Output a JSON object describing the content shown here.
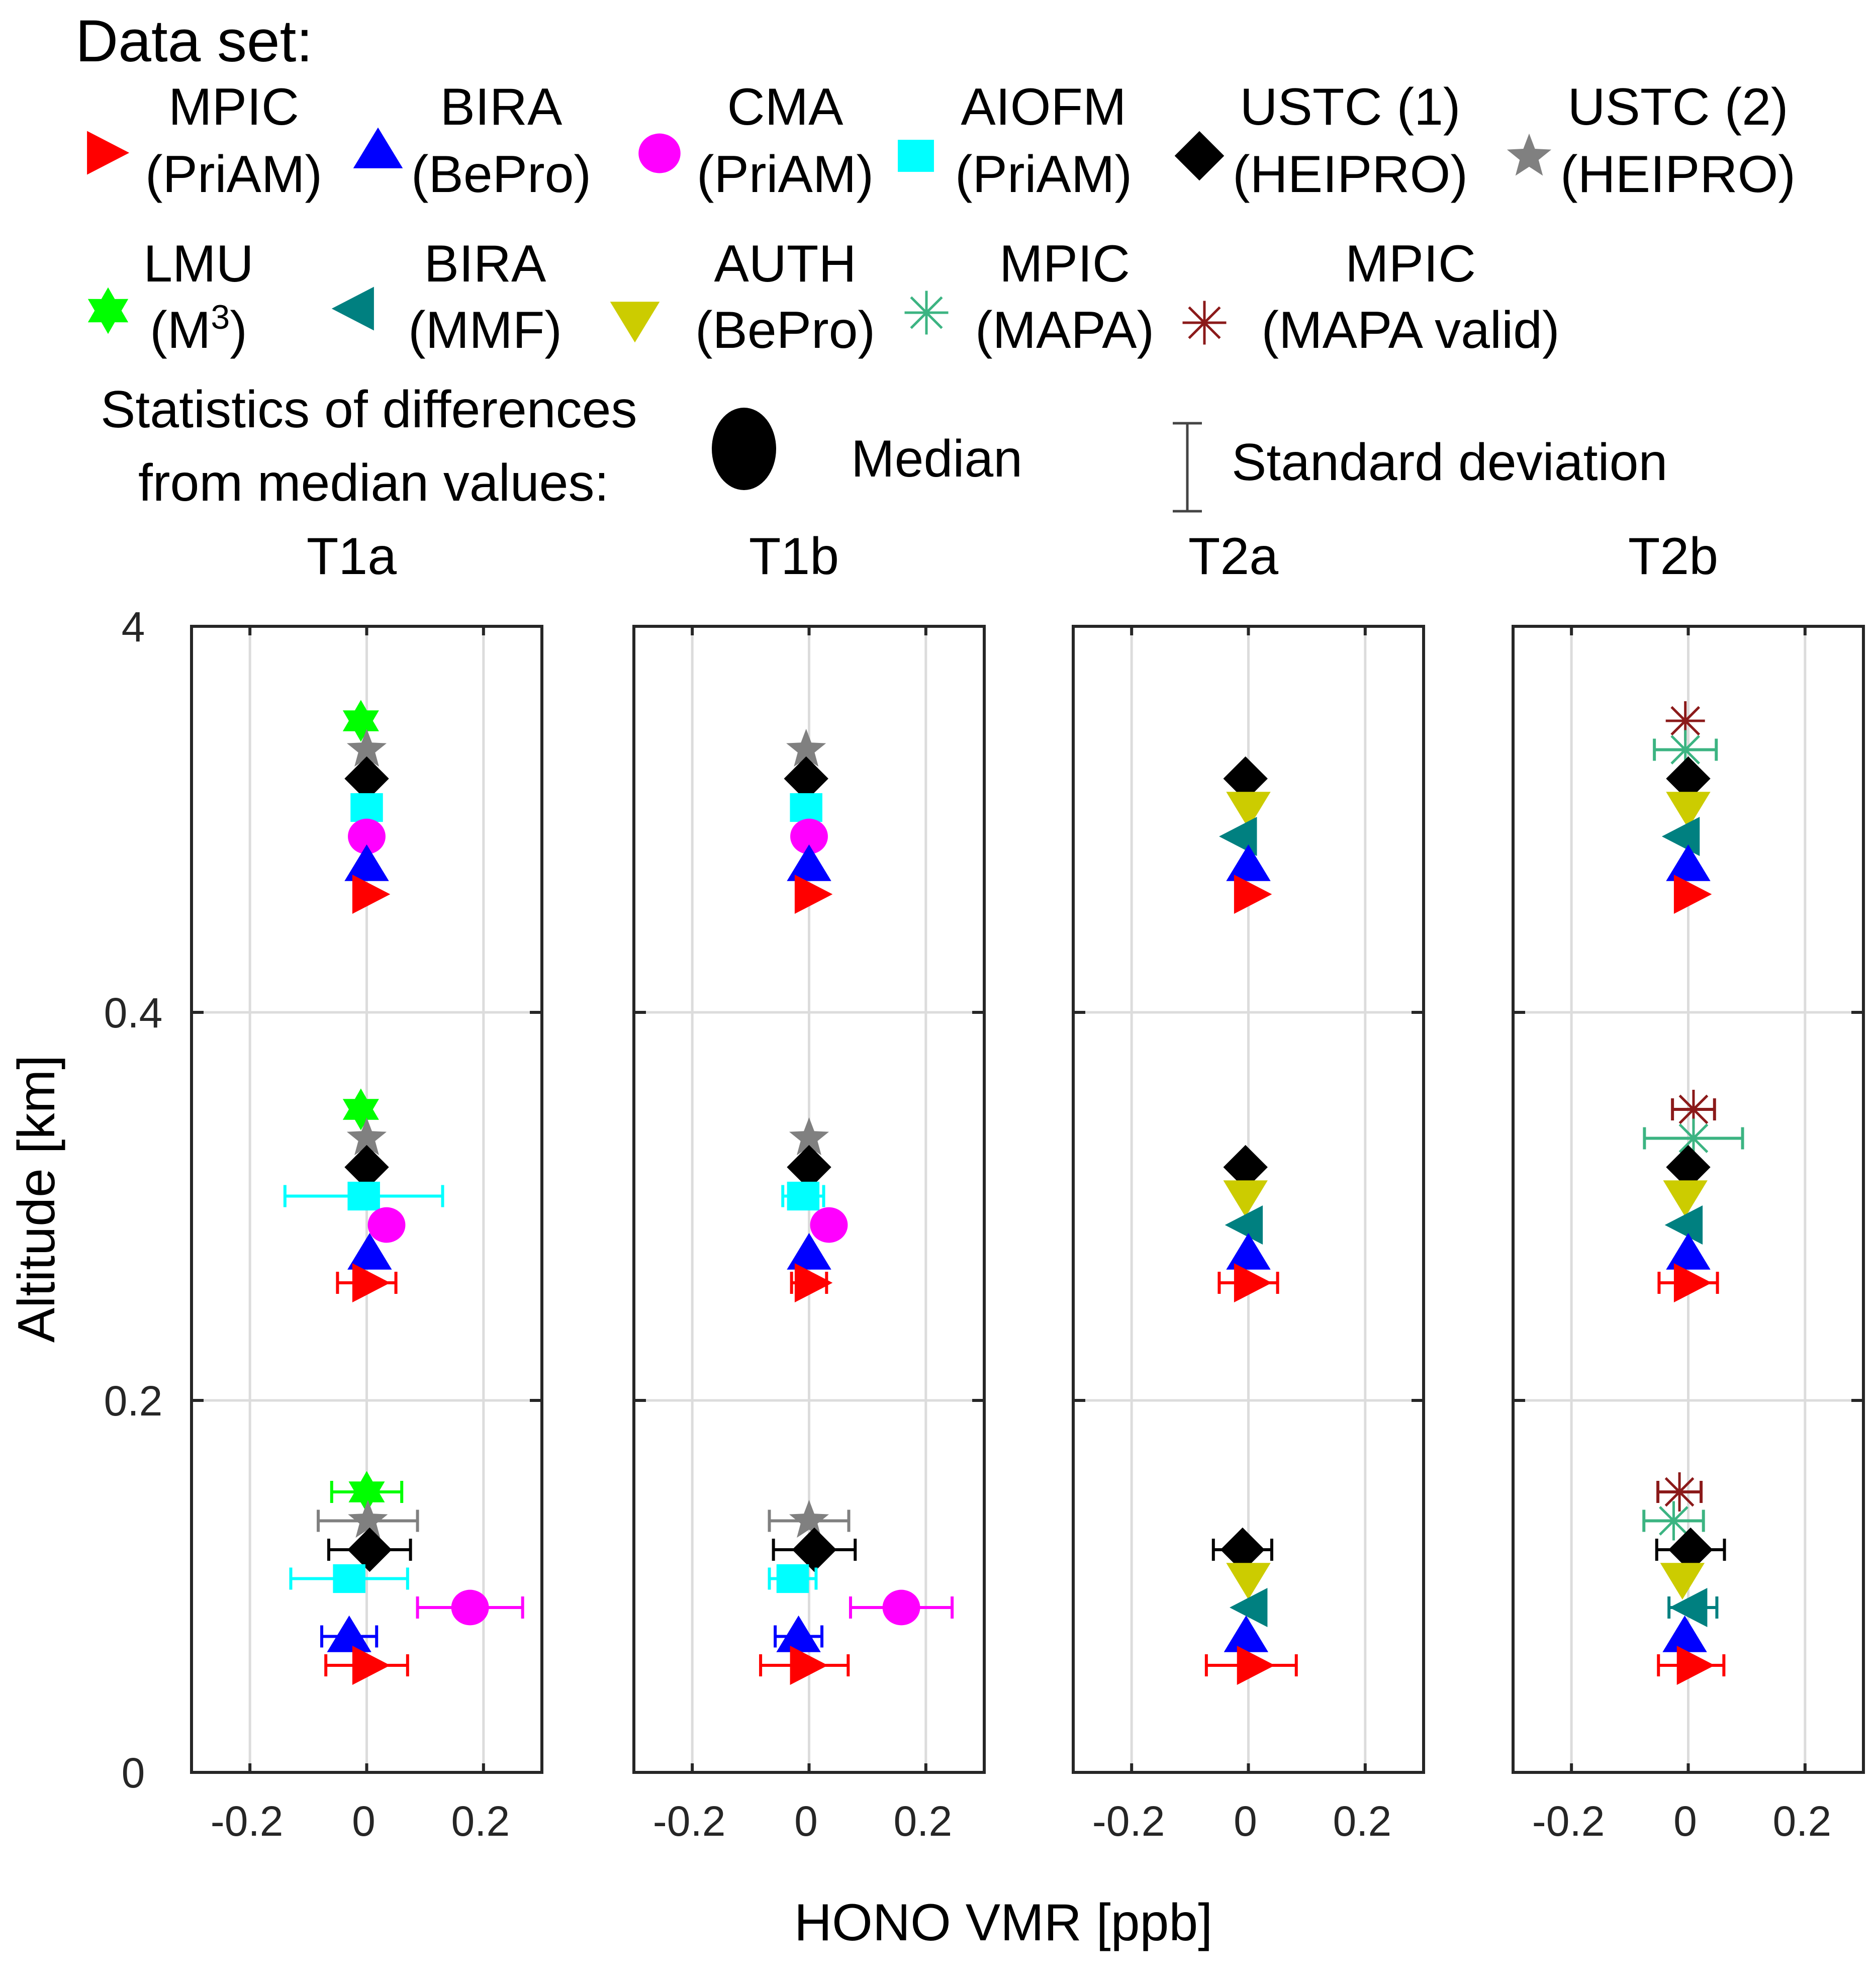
{
  "legend": {
    "title": "Data set:",
    "stats_title_line1": "Statistics of differences",
    "stats_title_line2": "from median values:",
    "median_label": "Median",
    "std_label": "Standard deviation",
    "entries": [
      {
        "id": "mpic_priam",
        "line1": "MPIC",
        "line2": "(PriAM)",
        "marker": "triangle-right",
        "color": "#ff0000"
      },
      {
        "id": "bira_bepro",
        "line1": "BIRA",
        "line2": "(BePro)",
        "marker": "triangle-up",
        "color": "#0000ff"
      },
      {
        "id": "cma_priam",
        "line1": "CMA",
        "line2": "(PriAM)",
        "marker": "circle",
        "color": "#ff00ff"
      },
      {
        "id": "aiofm_priam",
        "line1": "AIOFM",
        "line2": "(PriAM)",
        "marker": "square",
        "color": "#00ffff"
      },
      {
        "id": "ustc1_heipro",
        "line1": "USTC (1)",
        "line2": "(HEIPRO)",
        "marker": "diamond",
        "color": "#000000"
      },
      {
        "id": "ustc2_heipro",
        "line1": "USTC (2)",
        "line2": "(HEIPRO)",
        "marker": "pentagram",
        "color": "#808080"
      },
      {
        "id": "lmu_m3",
        "line1": "LMU",
        "line2": "(M",
        "line2_sup": "3",
        "line2_end": ")",
        "marker": "hexagram",
        "color": "#00ff00"
      },
      {
        "id": "bira_mmf",
        "line1": "BIRA",
        "line2": "(MMF)",
        "marker": "triangle-left",
        "color": "#008080"
      },
      {
        "id": "auth_bepro",
        "line1": "AUTH",
        "line2": "(BePro)",
        "marker": "triangle-down",
        "color": "#cccc00"
      },
      {
        "id": "mpic_mapa",
        "line1": "MPIC",
        "line2": "(MAPA)",
        "marker": "asterisk",
        "color": "#3cb482"
      },
      {
        "id": "mpic_mapa_valid",
        "line1": "MPIC",
        "line2": "(MAPA valid)",
        "marker": "asterisk",
        "color": "#8b1a1a"
      }
    ]
  },
  "chart_data": {
    "type": "scatter",
    "subtype": "errorbar-profile",
    "xlabel": "HONO VMR [ppb]",
    "ylabel": "Altitude [km]",
    "xlim": [
      -0.3,
      0.3
    ],
    "xticks": [
      -0.2,
      0,
      0.2
    ],
    "xtick_labels": [
      "-0.2",
      "0",
      "0.2"
    ],
    "ytick_labels": [
      "0",
      "0.2",
      "0.4",
      "4"
    ],
    "altitude_layers_km": [
      [
        0,
        0.2
      ],
      [
        0.2,
        0.4
      ],
      [
        0.4,
        4
      ]
    ],
    "grid": true,
    "panels": [
      {
        "title": "T1a",
        "layers": [
          {
            "layer": "0.4-4",
            "points": [
              {
                "id": "lmu_m3",
                "median": -0.01,
                "std": 0
              },
              {
                "id": "ustc2_heipro",
                "median": 0.0,
                "std": 0
              },
              {
                "id": "ustc1_heipro",
                "median": 0.0,
                "std": 0
              },
              {
                "id": "aiofm_priam",
                "median": 0.0,
                "std": 0
              },
              {
                "id": "cma_priam",
                "median": 0.0,
                "std": 0
              },
              {
                "id": "bira_bepro",
                "median": 0.0,
                "std": 0
              },
              {
                "id": "mpic_priam",
                "median": 0.0,
                "std": 0
              }
            ]
          },
          {
            "layer": "0.2-0.4",
            "points": [
              {
                "id": "lmu_m3",
                "median": -0.01,
                "std": 0
              },
              {
                "id": "ustc2_heipro",
                "median": 0.0,
                "std": 0
              },
              {
                "id": "ustc1_heipro",
                "median": 0.0,
                "std": 0
              },
              {
                "id": "aiofm_priam",
                "median": -0.005,
                "std": 0.135
              },
              {
                "id": "cma_priam",
                "median": 0.034,
                "std": 0
              },
              {
                "id": "bira_bepro",
                "median": 0.005,
                "std": 0
              },
              {
                "id": "mpic_priam",
                "median": 0.0,
                "std": 0.05
              }
            ]
          },
          {
            "layer": "0-0.2",
            "points": [
              {
                "id": "lmu_m3",
                "median": 0.0,
                "std": 0.06
              },
              {
                "id": "ustc2_heipro",
                "median": 0.002,
                "std": 0.085
              },
              {
                "id": "ustc1_heipro",
                "median": 0.005,
                "std": 0.07
              },
              {
                "id": "aiofm_priam",
                "median": -0.03,
                "std": 0.1
              },
              {
                "id": "cma_priam",
                "median": 0.177,
                "std": 0.09
              },
              {
                "id": "bira_bepro",
                "median": -0.03,
                "std": 0.047
              },
              {
                "id": "mpic_priam",
                "median": 0.0,
                "std": 0.07
              }
            ]
          }
        ]
      },
      {
        "title": "T1b",
        "layers": [
          {
            "layer": "0.4-4",
            "points": [
              {
                "id": "ustc2_heipro",
                "median": -0.005,
                "std": 0
              },
              {
                "id": "ustc1_heipro",
                "median": -0.005,
                "std": 0
              },
              {
                "id": "aiofm_priam",
                "median": -0.005,
                "std": 0
              },
              {
                "id": "cma_priam",
                "median": 0.0,
                "std": 0
              },
              {
                "id": "bira_bepro",
                "median": 0.0,
                "std": 0
              },
              {
                "id": "mpic_priam",
                "median": 0.0,
                "std": 0
              }
            ]
          },
          {
            "layer": "0.2-0.4",
            "points": [
              {
                "id": "ustc2_heipro",
                "median": 0.0,
                "std": 0
              },
              {
                "id": "ustc1_heipro",
                "median": 0.0,
                "std": 0
              },
              {
                "id": "aiofm_priam",
                "median": -0.01,
                "std": 0.035
              },
              {
                "id": "cma_priam",
                "median": 0.034,
                "std": 0
              },
              {
                "id": "bira_bepro",
                "median": 0.0,
                "std": 0
              },
              {
                "id": "mpic_priam",
                "median": 0.0,
                "std": 0.03
              }
            ]
          },
          {
            "layer": "0-0.2",
            "points": [
              {
                "id": "ustc2_heipro",
                "median": 0.0,
                "std": 0.068
              },
              {
                "id": "ustc1_heipro",
                "median": 0.009,
                "std": 0.07
              },
              {
                "id": "aiofm_priam",
                "median": -0.028,
                "std": 0.04
              },
              {
                "id": "cma_priam",
                "median": 0.158,
                "std": 0.087
              },
              {
                "id": "bira_bepro",
                "median": -0.018,
                "std": 0.04
              },
              {
                "id": "mpic_priam",
                "median": -0.008,
                "std": 0.075
              }
            ]
          }
        ]
      },
      {
        "title": "T2a",
        "layers": [
          {
            "layer": "0.4-4",
            "points": [
              {
                "id": "ustc1_heipro",
                "median": -0.005,
                "std": 0
              },
              {
                "id": "auth_bepro",
                "median": 0.0,
                "std": 0
              },
              {
                "id": "bira_mmf",
                "median": -0.01,
                "std": 0
              },
              {
                "id": "bira_bepro",
                "median": 0.0,
                "std": 0
              },
              {
                "id": "mpic_priam",
                "median": 0.0,
                "std": 0
              }
            ]
          },
          {
            "layer": "0.2-0.4",
            "points": [
              {
                "id": "ustc1_heipro",
                "median": -0.005,
                "std": 0
              },
              {
                "id": "auth_bepro",
                "median": -0.005,
                "std": 0
              },
              {
                "id": "bira_mmf",
                "median": 0.0,
                "std": 0
              },
              {
                "id": "bira_bepro",
                "median": 0.0,
                "std": 0
              },
              {
                "id": "mpic_priam",
                "median": 0.0,
                "std": 0.05
              }
            ]
          },
          {
            "layer": "0-0.2",
            "points": [
              {
                "id": "ustc1_heipro",
                "median": -0.01,
                "std": 0.05
              },
              {
                "id": "auth_bepro",
                "median": 0.0,
                "std": 0
              },
              {
                "id": "bira_mmf",
                "median": 0.008,
                "std": 0
              },
              {
                "id": "bira_bepro",
                "median": -0.004,
                "std": 0
              },
              {
                "id": "mpic_priam",
                "median": 0.005,
                "std": 0.077
              }
            ]
          }
        ]
      },
      {
        "title": "T2b",
        "layers": [
          {
            "layer": "0.4-4",
            "points": [
              {
                "id": "mpic_mapa_valid",
                "median": -0.005,
                "std": 0
              },
              {
                "id": "mpic_mapa",
                "median": -0.005,
                "std": 0.053
              },
              {
                "id": "ustc1_heipro",
                "median": 0.0,
                "std": 0
              },
              {
                "id": "auth_bepro",
                "median": 0.0,
                "std": 0
              },
              {
                "id": "bira_mmf",
                "median": -0.005,
                "std": 0
              },
              {
                "id": "bira_bepro",
                "median": 0.0,
                "std": 0
              },
              {
                "id": "mpic_priam",
                "median": 0.0,
                "std": 0
              }
            ]
          },
          {
            "layer": "0.2-0.4",
            "points": [
              {
                "id": "mpic_mapa_valid",
                "median": 0.009,
                "std": 0.036
              },
              {
                "id": "mpic_mapa",
                "median": 0.009,
                "std": 0.084
              },
              {
                "id": "ustc1_heipro",
                "median": 0.0,
                "std": 0
              },
              {
                "id": "auth_bepro",
                "median": -0.005,
                "std": 0
              },
              {
                "id": "bira_mmf",
                "median": 0.0,
                "std": 0
              },
              {
                "id": "bira_bepro",
                "median": 0.0,
                "std": 0
              },
              {
                "id": "mpic_priam",
                "median": 0.0,
                "std": 0.05
              }
            ]
          },
          {
            "layer": "0-0.2",
            "points": [
              {
                "id": "mpic_mapa_valid",
                "median": -0.015,
                "std": 0.037
              },
              {
                "id": "mpic_mapa",
                "median": -0.025,
                "std": 0.051
              },
              {
                "id": "ustc1_heipro",
                "median": 0.004,
                "std": 0.058
              },
              {
                "id": "auth_bepro",
                "median": -0.01,
                "std": 0
              },
              {
                "id": "bira_mmf",
                "median": 0.008,
                "std": 0.041
              },
              {
                "id": "bira_bepro",
                "median": -0.006,
                "std": 0
              },
              {
                "id": "mpic_priam",
                "median": 0.005,
                "std": 0.056
              }
            ]
          }
        ]
      }
    ]
  }
}
